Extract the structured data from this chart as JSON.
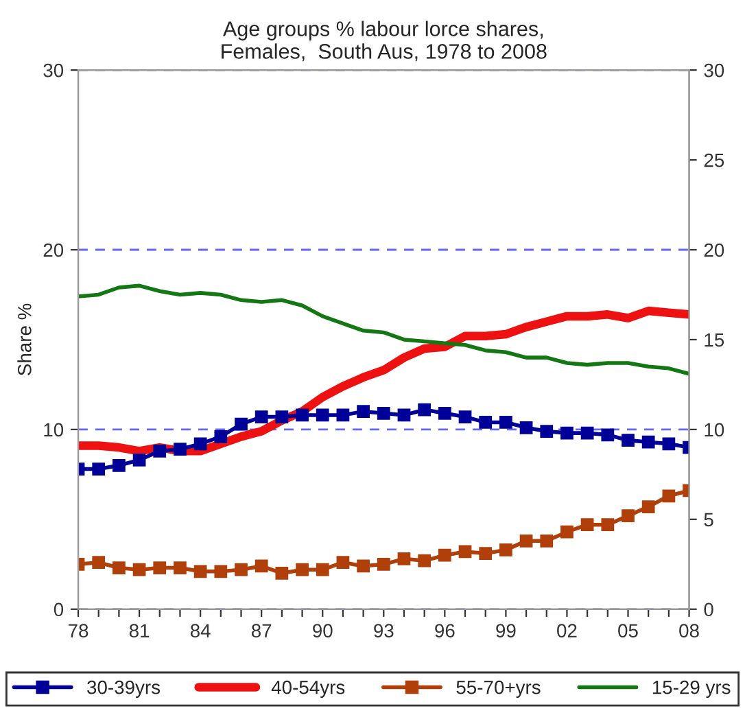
{
  "chart_data": {
    "type": "line",
    "title": "Age groups % labour lorce shares,\nFemales,  South Aus, 1978 to 2008",
    "ylabel": "Share %",
    "x": [
      1978,
      1979,
      1980,
      1981,
      1982,
      1983,
      1984,
      1985,
      1986,
      1987,
      1988,
      1989,
      1990,
      1991,
      1992,
      1993,
      1994,
      1995,
      1996,
      1997,
      1998,
      1999,
      2000,
      2001,
      2002,
      2003,
      2004,
      2005,
      2006,
      2007,
      2008
    ],
    "series": [
      {
        "name": "30-39yrs",
        "color": "#000099",
        "marker": "square",
        "values": [
          7.8,
          7.8,
          8.0,
          8.3,
          8.8,
          8.9,
          9.2,
          9.6,
          10.3,
          10.7,
          10.7,
          10.8,
          10.8,
          10.8,
          11.0,
          10.9,
          10.8,
          11.1,
          10.9,
          10.7,
          10.4,
          10.4,
          10.1,
          9.9,
          9.8,
          9.8,
          9.7,
          9.4,
          9.3,
          9.2,
          9.0
        ]
      },
      {
        "name": "40-54yrs",
        "color": "#ee1111",
        "marker": "none",
        "values": [
          9.1,
          9.1,
          9.0,
          8.8,
          9.0,
          8.8,
          8.8,
          9.2,
          9.6,
          9.9,
          10.5,
          11.0,
          11.8,
          12.4,
          12.9,
          13.3,
          14.0,
          14.5,
          14.6,
          15.2,
          15.2,
          15.3,
          15.7,
          16.0,
          16.3,
          16.3,
          16.4,
          16.2,
          16.6,
          16.5,
          16.4
        ]
      },
      {
        "name": "55-70+yrs",
        "color": "#b03f0a",
        "marker": "square",
        "values": [
          2.5,
          2.6,
          2.3,
          2.2,
          2.3,
          2.3,
          2.1,
          2.1,
          2.2,
          2.4,
          2.0,
          2.2,
          2.2,
          2.6,
          2.4,
          2.5,
          2.8,
          2.7,
          3.0,
          3.2,
          3.1,
          3.3,
          3.8,
          3.8,
          4.3,
          4.7,
          4.7,
          5.2,
          5.7,
          6.3,
          6.6
        ]
      },
      {
        "name": "15-29 yrs",
        "color": "#137813",
        "marker": "none",
        "values": [
          17.4,
          17.5,
          17.9,
          18.0,
          17.7,
          17.5,
          17.6,
          17.5,
          17.2,
          17.1,
          17.2,
          16.9,
          16.3,
          15.9,
          15.5,
          15.4,
          15.0,
          14.9,
          14.8,
          14.7,
          14.4,
          14.3,
          14.0,
          14.0,
          13.7,
          13.6,
          13.7,
          13.7,
          13.5,
          13.4,
          13.1
        ]
      }
    ],
    "xlim": [
      1978,
      2008
    ],
    "xticks": [
      {
        "value": 1978,
        "label": "78"
      },
      {
        "value": 1979,
        "label": null
      },
      {
        "value": 1980,
        "label": null
      },
      {
        "value": 1981,
        "label": "81"
      },
      {
        "value": 1982,
        "label": null
      },
      {
        "value": 1983,
        "label": null
      },
      {
        "value": 1984,
        "label": "84"
      },
      {
        "value": 1985,
        "label": null
      },
      {
        "value": 1986,
        "label": null
      },
      {
        "value": 1987,
        "label": "87"
      },
      {
        "value": 1988,
        "label": null
      },
      {
        "value": 1989,
        "label": null
      },
      {
        "value": 1990,
        "label": "90"
      },
      {
        "value": 1991,
        "label": null
      },
      {
        "value": 1992,
        "label": null
      },
      {
        "value": 1993,
        "label": "93"
      },
      {
        "value": 1994,
        "label": null
      },
      {
        "value": 1995,
        "label": null
      },
      {
        "value": 1996,
        "label": "96"
      },
      {
        "value": 1997,
        "label": null
      },
      {
        "value": 1998,
        "label": null
      },
      {
        "value": 1999,
        "label": "99"
      },
      {
        "value": 2000,
        "label": null
      },
      {
        "value": 2001,
        "label": null
      },
      {
        "value": 2002,
        "label": "02"
      },
      {
        "value": 2003,
        "label": null
      },
      {
        "value": 2004,
        "label": null
      },
      {
        "value": 2005,
        "label": "05"
      },
      {
        "value": 2006,
        "label": null
      },
      {
        "value": 2007,
        "label": null
      },
      {
        "value": 2008,
        "label": "08"
      }
    ],
    "ylim": [
      0,
      30
    ],
    "yticks": [
      0,
      10,
      20,
      30
    ],
    "y2lim": [
      0,
      30
    ],
    "y2ticks": [
      0,
      5,
      10,
      15,
      20,
      25,
      30
    ],
    "grid": "y",
    "legend": "bottom"
  }
}
